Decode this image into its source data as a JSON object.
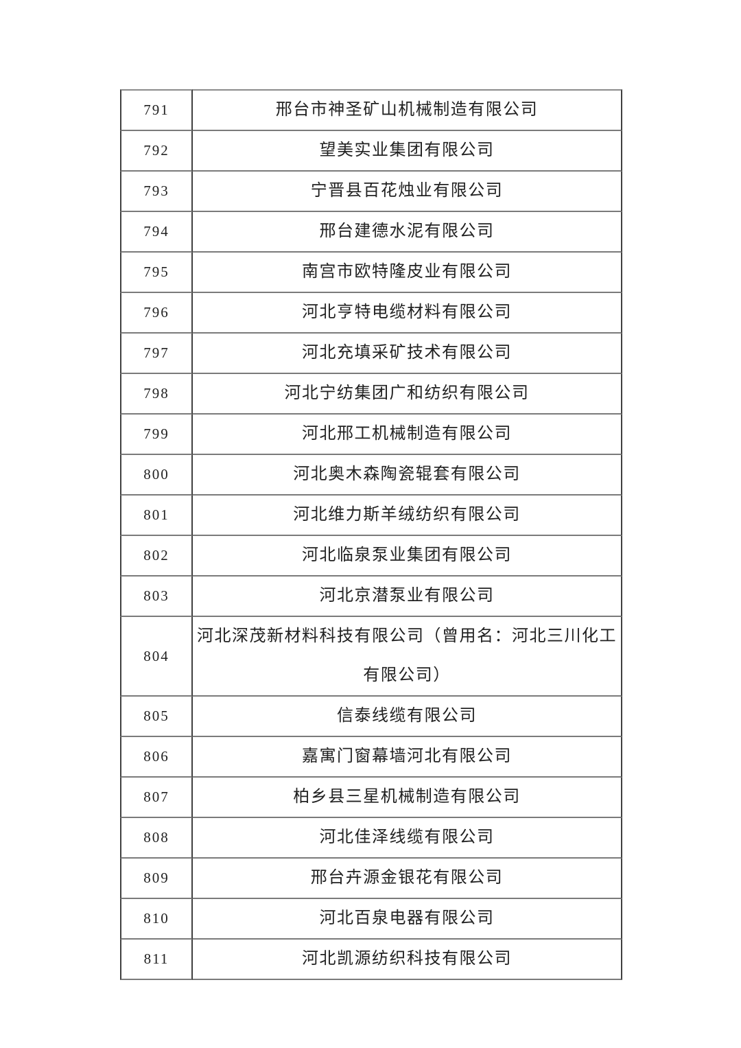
{
  "colors": {
    "background": "#ffffff",
    "vertical_border": "#3f3f3f",
    "horizontal_border": "#7a7a7a",
    "text": "#212121"
  },
  "table": {
    "rows": [
      {
        "no": "791",
        "name": "邢台市神圣矿山机械制造有限公司"
      },
      {
        "no": "792",
        "name": "望美实业集团有限公司"
      },
      {
        "no": "793",
        "name": "宁晋县百花烛业有限公司"
      },
      {
        "no": "794",
        "name": "邢台建德水泥有限公司"
      },
      {
        "no": "795",
        "name": "南宫市欧特隆皮业有限公司"
      },
      {
        "no": "796",
        "name": "河北亨特电缆材料有限公司"
      },
      {
        "no": "797",
        "name": "河北充填采矿技术有限公司"
      },
      {
        "no": "798",
        "name": "河北宁纺集团广和纺织有限公司"
      },
      {
        "no": "799",
        "name": "河北邢工机械制造有限公司"
      },
      {
        "no": "800",
        "name": "河北奥木森陶瓷辊套有限公司"
      },
      {
        "no": "801",
        "name": "河北维力斯羊绒纺织有限公司"
      },
      {
        "no": "802",
        "name": "河北临泉泵业集团有限公司"
      },
      {
        "no": "803",
        "name": "河北京潜泵业有限公司"
      },
      {
        "no": "804",
        "name": "河北深茂新材料科技有限公司（曾用名：河北三川化工\n有限公司）"
      },
      {
        "no": "805",
        "name": "信泰线缆有限公司"
      },
      {
        "no": "806",
        "name": "嘉寓门窗幕墙河北有限公司"
      },
      {
        "no": "807",
        "name": "柏乡县三星机械制造有限公司"
      },
      {
        "no": "808",
        "name": "河北佳泽线缆有限公司"
      },
      {
        "no": "809",
        "name": "邢台卉源金银花有限公司"
      },
      {
        "no": "810",
        "name": "河北百泉电器有限公司"
      },
      {
        "no": "811",
        "name": "河北凯源纺织科技有限公司"
      }
    ]
  }
}
